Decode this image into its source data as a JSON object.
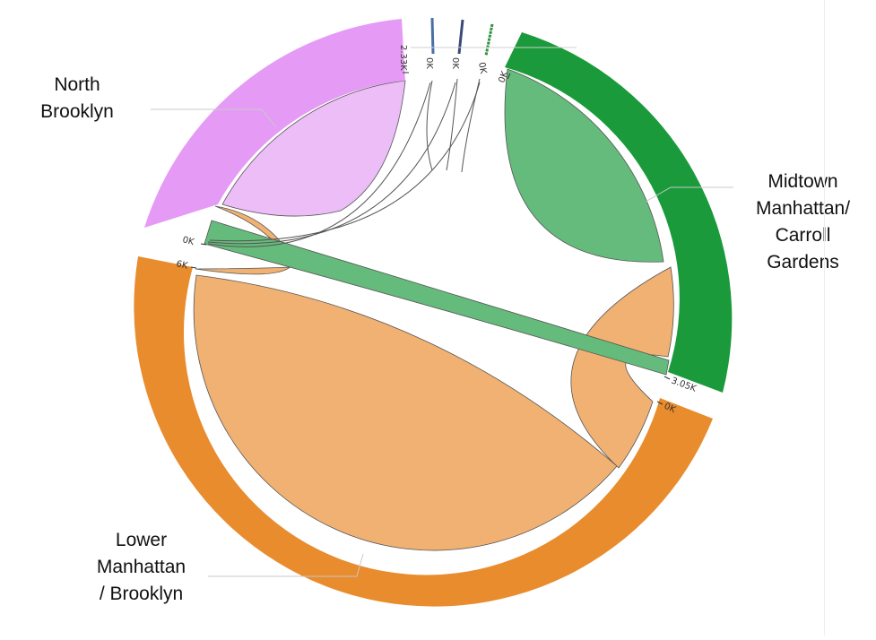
{
  "groups": [
    {
      "id": "north-brooklyn",
      "label_lines": [
        "North",
        "Brooklyn"
      ],
      "color": "#e59bf5",
      "ribbon_color": "#ecbdf7",
      "tick_start": "0K",
      "tick_end": "2.33K"
    },
    {
      "id": "midtown",
      "label_lines": [
        "Midtown",
        "Manhattan/",
        "Carroll",
        "Gardens"
      ],
      "color": "#1a9a3a",
      "ribbon_color": "#65bb7b",
      "tick_start": "0K",
      "tick_end": "3.05K"
    },
    {
      "id": "lower-manhattan",
      "label_lines": [
        "Lower",
        "Manhattan",
        "/ Brooklyn"
      ],
      "color": "#e88c2e",
      "ribbon_color": "#f0b172",
      "tick_start": "0K",
      "tick_end": "6K"
    }
  ],
  "small_group_ticks": [
    "0K",
    "0K",
    "0K"
  ],
  "colors": {
    "small_blue": "#4a6fa5",
    "small_navy": "#3a4a7a",
    "small_green": "#2f8f3f",
    "outline": "#555555"
  }
}
